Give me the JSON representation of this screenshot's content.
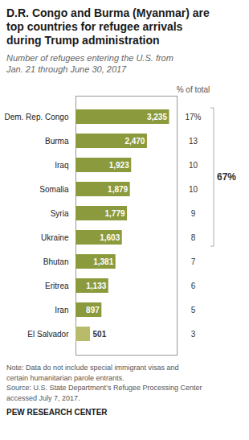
{
  "chart_data": {
    "type": "bar",
    "orientation": "horizontal",
    "title": "D.R. Congo and Burma (Myanmar) are\ntop countries for refugee arrivals\nduring Trump administration",
    "subtitle": "Number of refugees entering the U.S. from\nJan. 21 through June 30, 2017",
    "categories": [
      "Dem. Rep. Congo",
      "Burma",
      "Iraq",
      "Somalia",
      "Syria",
      "Ukraine",
      "Bhutan",
      "Eritrea",
      "Iran",
      "El Salvador"
    ],
    "values": [
      3235,
      2470,
      1923,
      1879,
      1779,
      1603,
      1381,
      1133,
      897,
      501
    ],
    "value_labels": [
      "3,235",
      "2,470",
      "1,923",
      "1,879",
      "1,779",
      "1,603",
      "1,381",
      "1,133",
      "897",
      "501"
    ],
    "data_labels": true,
    "colors": [
      "#8b9a3c",
      "#8b9a3c",
      "#8b9a3c",
      "#8b9a3c",
      "#8b9a3c",
      "#8b9a3c",
      "#8b9a3c",
      "#8b9a3c",
      "#8b9a3c",
      "#b8bc6a"
    ],
    "xlim": [
      0,
      3500
    ],
    "tick_labels": "y",
    "grid": false,
    "percentage_header": "% of total",
    "percentages": [
      "17%",
      "13",
      "10",
      "10",
      "9",
      "8",
      "7",
      "6",
      "5",
      "3"
    ],
    "bracket": {
      "label": "67%",
      "from": "Dem. Rep. Congo",
      "to": "Ukraine"
    },
    "notes": [
      "Note: Data do not include special immigrant visas and",
      "certain humanitarian parole entrants.",
      "Source: U.S. State Department’s Refugee Processing Center",
      "accessed July 7, 2017."
    ],
    "source": "PEW RESEARCH CENTER"
  }
}
